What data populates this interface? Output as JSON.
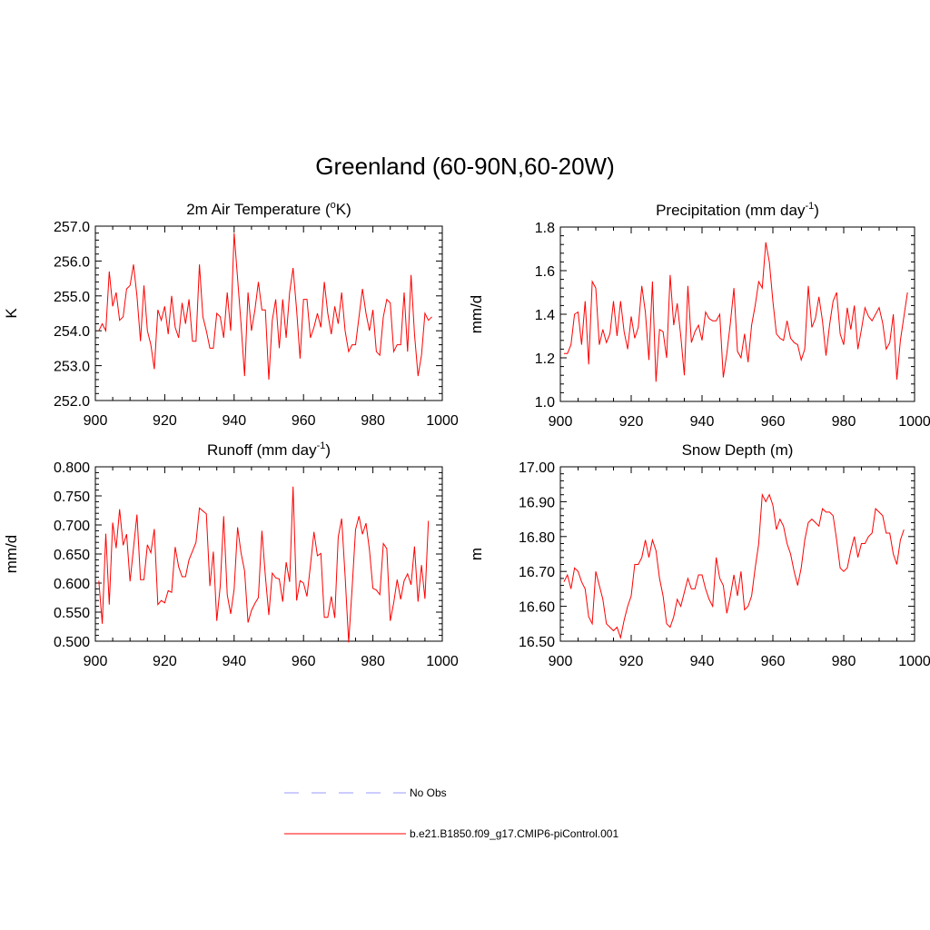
{
  "title": "Greenland (60-90N,60-20W)",
  "colors": {
    "model": "#ff0000",
    "obs": "#9999ff",
    "axis": "#000000"
  },
  "legend": [
    {
      "label": "No Obs",
      "style": "dashed",
      "color": "#9999ff"
    },
    {
      "label": "b.e21.B1850.f09_g17.CMIP6-piControl.001",
      "style": "solid",
      "color": "#ff0000"
    }
  ],
  "chart_data": [
    {
      "type": "line",
      "title": "2m Air Temperature (",
      "title_sup": "o",
      "title_after": "K)",
      "ylabel": "K",
      "xlim": [
        900,
        1000
      ],
      "ylim": [
        252.0,
        257.0
      ],
      "yticks": [
        252.0,
        253.0,
        254.0,
        255.0,
        256.0,
        257.0
      ],
      "ytick_labels": [
        "252.0",
        "253.0",
        "254.0",
        "255.0",
        "256.0",
        "257.0"
      ],
      "xticks": [
        900,
        920,
        940,
        960,
        980,
        1000
      ],
      "x_start": 901,
      "series": [
        {
          "name": "b.e21.B1850.f09_g17.CMIP6-piControl.001",
          "values": [
            254.0,
            254.2,
            254.0,
            255.7,
            254.7,
            255.1,
            254.3,
            254.4,
            255.2,
            255.3,
            255.9,
            255.0,
            253.7,
            255.3,
            254.0,
            253.6,
            252.9,
            254.6,
            254.3,
            254.7,
            253.9,
            255.0,
            254.1,
            253.8,
            254.8,
            254.2,
            254.9,
            253.7,
            253.7,
            255.9,
            254.4,
            254.0,
            253.5,
            253.5,
            254.5,
            254.4,
            253.8,
            255.1,
            254.0,
            256.8,
            255.5,
            254.2,
            252.7,
            255.1,
            254.0,
            254.6,
            255.4,
            254.6,
            254.6,
            252.6,
            254.3,
            254.9,
            253.5,
            254.9,
            253.8,
            255.1,
            255.8,
            254.6,
            253.2,
            254.9,
            254.9,
            253.8,
            254.1,
            254.5,
            254.1,
            255.4,
            254.5,
            253.9,
            254.7,
            254.2,
            255.1,
            254.0,
            253.4,
            253.6,
            253.6,
            254.4,
            255.2,
            254.5,
            254.0,
            254.6,
            253.4,
            253.3,
            254.4,
            254.9,
            254.8,
            253.4,
            253.6,
            253.6,
            255.1,
            253.4,
            255.6,
            253.9,
            252.7,
            253.3,
            254.5,
            254.3,
            254.4
          ]
        }
      ]
    },
    {
      "type": "line",
      "title": "Precipitation (mm day",
      "title_sup": "-1",
      "title_after": ")",
      "ylabel": "mm/d",
      "xlim": [
        900,
        1000
      ],
      "ylim": [
        1.0,
        1.8
      ],
      "yticks": [
        1.0,
        1.2,
        1.4,
        1.6,
        1.8
      ],
      "ytick_labels": [
        "1.0",
        "1.2",
        "1.4",
        "1.6",
        "1.8"
      ],
      "xticks": [
        900,
        920,
        940,
        960,
        980,
        1000
      ],
      "x_start": 901,
      "series": [
        {
          "name": "b.e21.B1850.f09_g17.CMIP6-piControl.001",
          "values": [
            1.22,
            1.22,
            1.26,
            1.4,
            1.41,
            1.26,
            1.46,
            1.17,
            1.55,
            1.52,
            1.26,
            1.33,
            1.27,
            1.31,
            1.46,
            1.3,
            1.46,
            1.32,
            1.24,
            1.39,
            1.29,
            1.34,
            1.53,
            1.41,
            1.19,
            1.55,
            1.09,
            1.33,
            1.32,
            1.2,
            1.58,
            1.35,
            1.45,
            1.3,
            1.12,
            1.53,
            1.27,
            1.32,
            1.35,
            1.28,
            1.41,
            1.38,
            1.37,
            1.37,
            1.4,
            1.11,
            1.22,
            1.36,
            1.52,
            1.23,
            1.2,
            1.31,
            1.18,
            1.35,
            1.44,
            1.55,
            1.52,
            1.73,
            1.64,
            1.46,
            1.31,
            1.29,
            1.28,
            1.37,
            1.29,
            1.27,
            1.26,
            1.19,
            1.24,
            1.53,
            1.34,
            1.38,
            1.48,
            1.37,
            1.21,
            1.35,
            1.46,
            1.5,
            1.31,
            1.26,
            1.43,
            1.33,
            1.44,
            1.24,
            1.33,
            1.43,
            1.39,
            1.37,
            1.4,
            1.43,
            1.36,
            1.24,
            1.27,
            1.4,
            1.1,
            1.28,
            1.39,
            1.5
          ]
        }
      ]
    },
    {
      "type": "line",
      "title": "Runoff (mm day",
      "title_sup": "-1",
      "title_after": ")",
      "ylabel": "mm/d",
      "xlim": [
        900,
        1000
      ],
      "ylim": [
        0.5,
        0.8
      ],
      "yticks": [
        0.5,
        0.55,
        0.6,
        0.65,
        0.7,
        0.75,
        0.8
      ],
      "ytick_labels": [
        "0.500",
        "0.550",
        "0.600",
        "0.650",
        "0.700",
        "0.750",
        "0.800"
      ],
      "xticks": [
        900,
        920,
        940,
        960,
        980,
        1000
      ],
      "x_start": 901,
      "series": [
        {
          "name": "b.e21.B1850.f09_g17.CMIP6-piControl.001",
          "values": [
            0.604,
            0.53,
            0.685,
            0.563,
            0.704,
            0.66,
            0.727,
            0.665,
            0.684,
            0.603,
            0.66,
            0.718,
            0.606,
            0.606,
            0.666,
            0.652,
            0.693,
            0.563,
            0.57,
            0.566,
            0.587,
            0.584,
            0.662,
            0.628,
            0.611,
            0.611,
            0.64,
            0.655,
            0.67,
            0.729,
            0.724,
            0.719,
            0.595,
            0.654,
            0.535,
            0.595,
            0.715,
            0.58,
            0.547,
            0.589,
            0.696,
            0.652,
            0.621,
            0.532,
            0.553,
            0.565,
            0.575,
            0.69,
            0.612,
            0.545,
            0.617,
            0.609,
            0.607,
            0.568,
            0.636,
            0.602,
            0.766,
            0.57,
            0.604,
            0.6,
            0.577,
            0.63,
            0.688,
            0.647,
            0.651,
            0.541,
            0.541,
            0.577,
            0.54,
            0.679,
            0.711,
            0.612,
            0.498,
            0.591,
            0.692,
            0.715,
            0.684,
            0.703,
            0.657,
            0.591,
            0.588,
            0.58,
            0.668,
            0.659,
            0.535,
            0.566,
            0.606,
            0.572,
            0.604,
            0.616,
            0.597,
            0.663,
            0.568,
            0.631,
            0.573,
            0.707
          ]
        }
      ]
    },
    {
      "type": "line",
      "title": "Snow Depth (m)",
      "title_sup": "",
      "title_after": "",
      "ylabel": "m",
      "xlim": [
        900,
        1000
      ],
      "ylim": [
        16.5,
        17.0
      ],
      "yticks": [
        16.5,
        16.6,
        16.7,
        16.8,
        16.9,
        17.0
      ],
      "ytick_labels": [
        "16.50",
        "16.60",
        "16.70",
        "16.80",
        "16.90",
        "17.00"
      ],
      "xticks": [
        900,
        920,
        940,
        960,
        980,
        1000
      ],
      "x_start": 901,
      "series": [
        {
          "name": "b.e21.B1850.f09_g17.CMIP6-piControl.001",
          "values": [
            16.67,
            16.69,
            16.65,
            16.71,
            16.7,
            16.67,
            16.65,
            16.57,
            16.55,
            16.7,
            16.66,
            16.62,
            16.55,
            16.54,
            16.53,
            16.54,
            16.51,
            16.56,
            16.6,
            16.63,
            16.72,
            16.72,
            16.74,
            16.79,
            16.74,
            16.79,
            16.76,
            16.68,
            16.63,
            16.55,
            16.54,
            16.57,
            16.62,
            16.6,
            16.64,
            16.68,
            16.65,
            16.65,
            16.69,
            16.69,
            16.65,
            16.62,
            16.6,
            16.74,
            16.68,
            16.66,
            16.58,
            16.63,
            16.69,
            16.63,
            16.7,
            16.59,
            16.6,
            16.63,
            16.71,
            16.78,
            16.92,
            16.9,
            16.92,
            16.89,
            16.82,
            16.85,
            16.83,
            16.78,
            16.75,
            16.7,
            16.66,
            16.71,
            16.79,
            16.84,
            16.85,
            16.84,
            16.83,
            16.88,
            16.87,
            16.87,
            16.86,
            16.79,
            16.71,
            16.7,
            16.71,
            16.76,
            16.8,
            16.74,
            16.78,
            16.78,
            16.8,
            16.81,
            16.88,
            16.87,
            16.86,
            16.81,
            16.81,
            16.75,
            16.72,
            16.79,
            16.82
          ]
        }
      ]
    }
  ]
}
